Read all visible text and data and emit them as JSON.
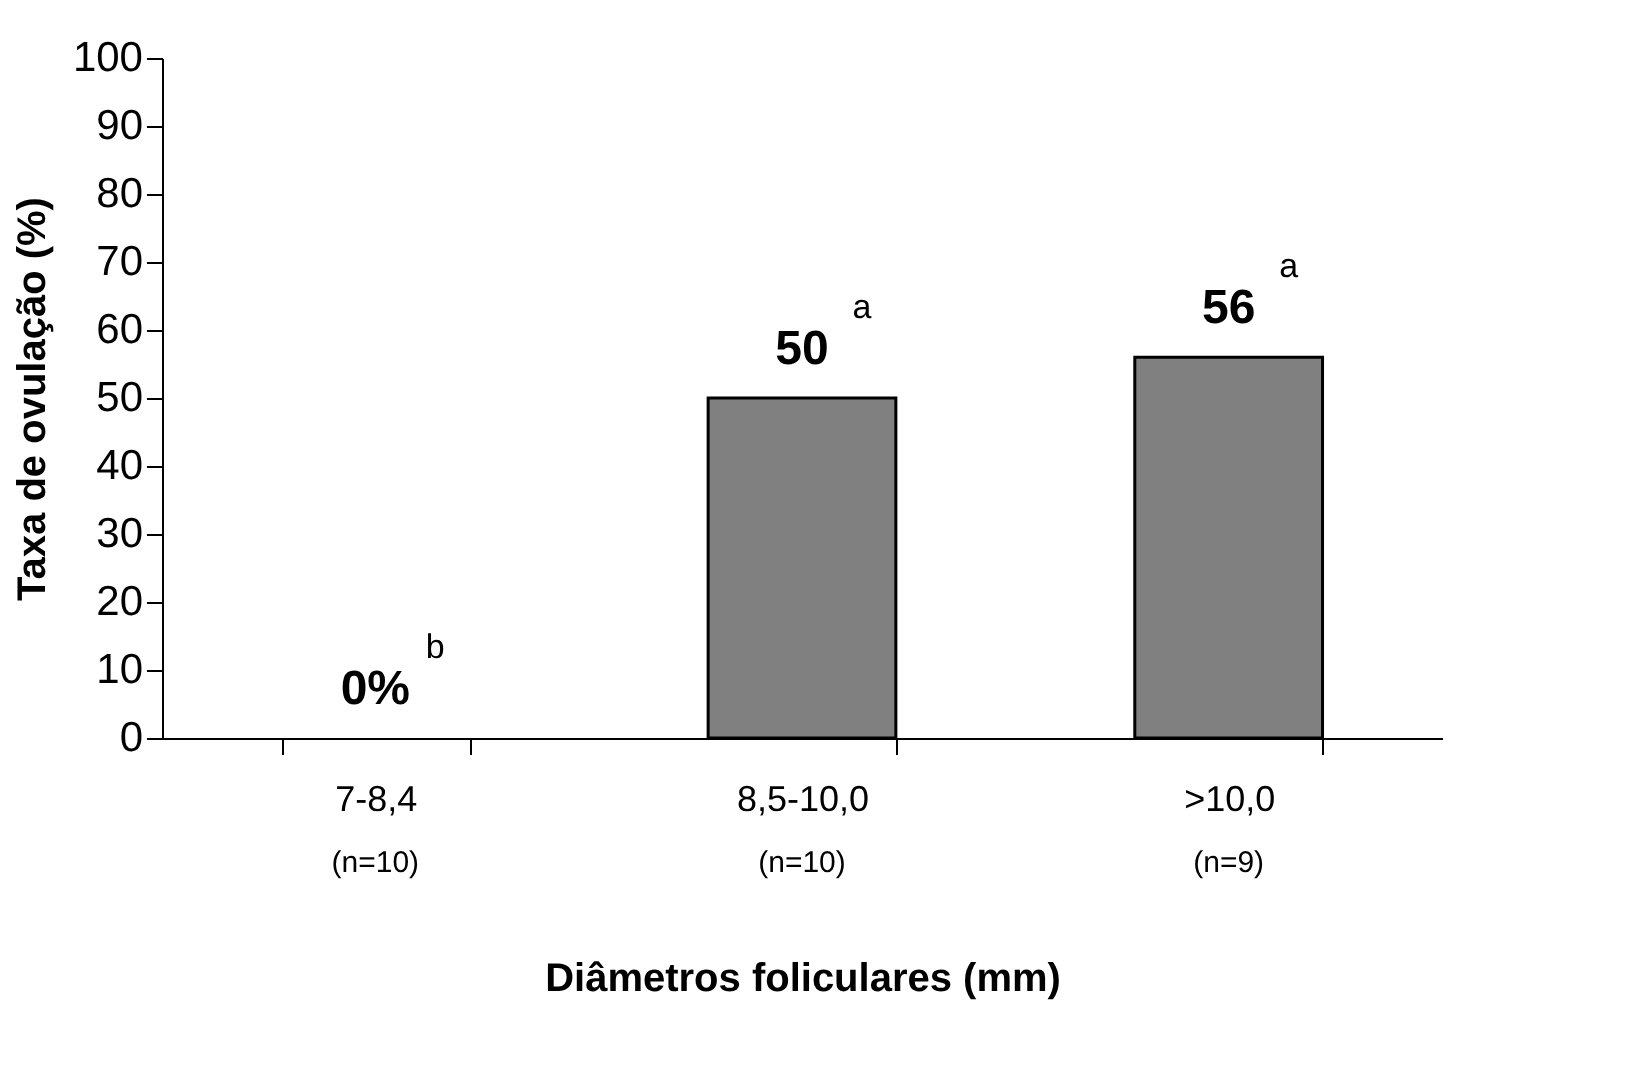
{
  "chart_data": {
    "type": "bar",
    "categories": [
      "7-8,4",
      "8,5-10,0",
      ">10,0"
    ],
    "values": [
      0,
      50,
      56
    ],
    "value_labels": [
      "0%",
      "50",
      "56"
    ],
    "color": "#808080",
    "xlabel": "Diâmetros foliculares (mm)",
    "ylabel": "Taxa de ovulação (%)",
    "ylim": [
      0,
      100
    ],
    "yticks": [
      0,
      10,
      20,
      30,
      40,
      50,
      60,
      70,
      80,
      90,
      100
    ],
    "grid": false,
    "annotations": [
      {
        "text": "b",
        "x": "7-8,4",
        "y": 0
      },
      {
        "text": "a",
        "x": "8,5-10,0",
        "y": 50
      },
      {
        "text": "a",
        "x": ">10,0",
        "y": 56
      },
      "(n=10)",
      "(n=10)",
      "(n=9)"
    ]
  }
}
